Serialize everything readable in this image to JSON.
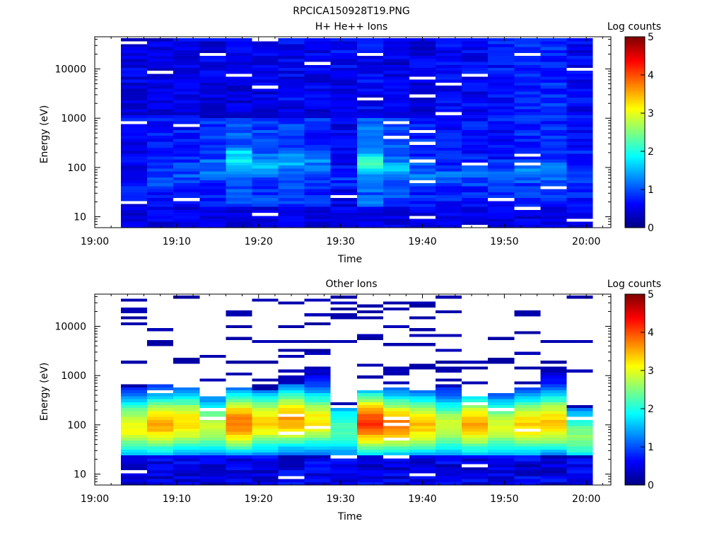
{
  "figure_title": "RPCICA150928T19.PNG",
  "chart_data": [
    {
      "type": "heatmap",
      "title": "H+ He++ Ions",
      "xlabel": "Time",
      "ylabel": "Energy (eV)",
      "x_ticks": [
        "19:00",
        "19:10",
        "19:20",
        "19:30",
        "19:40",
        "19:50",
        "20:00"
      ],
      "xlim": [
        "19:00",
        "20:03"
      ],
      "y_scale": "log",
      "y_ticks": [
        "10",
        "100",
        "1000",
        "10000"
      ],
      "ylim": [
        6,
        45000
      ],
      "colorbar": {
        "label": "Log counts",
        "ticks": [
          "0",
          "1",
          "2",
          "3",
          "4",
          "5"
        ],
        "range": [
          0,
          5
        ],
        "colormap": "jet"
      },
      "scan_starts": [
        "19:03:12",
        "19:06:24",
        "19:09:36",
        "19:12:48",
        "19:16:00",
        "19:19:12",
        "19:22:24",
        "19:25:36",
        "19:28:48",
        "19:32:00",
        "19:35:12",
        "19:38:24",
        "19:41:36",
        "19:44:48",
        "19:48:00",
        "19:51:12",
        "19:54:24",
        "19:57:36"
      ],
      "energy_range_eV": [
        6,
        42000
      ],
      "description_of_values": "Log counts per energy bin per scan",
      "scans": [
        {
          "start": "19:03:12",
          "level_below_100eV": 0.6,
          "level_above_1keV": 0.5,
          "peak_eV": 40,
          "peak_log_counts": 0.8
        },
        {
          "start": "19:06:24",
          "level_below_100eV": 0.7,
          "level_above_1keV": 0.5,
          "peak_eV": 60,
          "peak_log_counts": 1.0
        },
        {
          "start": "19:09:36",
          "level_below_100eV": 0.7,
          "level_above_1keV": 0.5,
          "peak_eV": 80,
          "peak_log_counts": 1.0
        },
        {
          "start": "19:12:48",
          "level_below_100eV": 0.8,
          "level_above_1keV": 0.5,
          "peak_eV": 100,
          "peak_log_counts": 1.2
        },
        {
          "start": "19:16:00",
          "level_below_100eV": 1.0,
          "level_above_1keV": 0.5,
          "peak_eV": 150,
          "peak_log_counts": 1.9
        },
        {
          "start": "19:19:12",
          "level_below_100eV": 0.9,
          "level_above_1keV": 0.5,
          "peak_eV": 110,
          "peak_log_counts": 1.5
        },
        {
          "start": "19:22:24",
          "level_below_100eV": 0.9,
          "level_above_1keV": 0.6,
          "peak_eV": 130,
          "peak_log_counts": 1.5
        },
        {
          "start": "19:25:36",
          "level_below_100eV": 0.8,
          "level_above_1keV": 0.5,
          "peak_eV": 120,
          "peak_log_counts": 1.3
        },
        {
          "start": "19:28:48",
          "level_below_100eV": 0.5,
          "level_above_1keV": 0.6,
          "peak_eV": 60,
          "peak_log_counts": 0.8
        },
        {
          "start": "19:32:00",
          "level_below_100eV": 1.1,
          "level_above_1keV": 0.6,
          "peak_eV": 120,
          "peak_log_counts": 2.3
        },
        {
          "start": "19:35:12",
          "level_below_100eV": 1.0,
          "level_above_1keV": 0.5,
          "peak_eV": 90,
          "peak_log_counts": 1.6
        },
        {
          "start": "19:38:24",
          "level_below_100eV": 0.8,
          "level_above_1keV": 0.5,
          "peak_eV": 80,
          "peak_log_counts": 1.2
        },
        {
          "start": "19:41:36",
          "level_below_100eV": 0.7,
          "level_above_1keV": 0.6,
          "peak_eV": 70,
          "peak_log_counts": 1.1
        },
        {
          "start": "19:44:48",
          "level_below_100eV": 0.7,
          "level_above_1keV": 0.6,
          "peak_eV": 70,
          "peak_log_counts": 1.1
        },
        {
          "start": "19:48:00",
          "level_below_100eV": 0.7,
          "level_above_1keV": 0.7,
          "peak_eV": 70,
          "peak_log_counts": 1.1
        },
        {
          "start": "19:51:12",
          "level_below_100eV": 0.8,
          "level_above_1keV": 0.8,
          "peak_eV": 80,
          "peak_log_counts": 1.2
        },
        {
          "start": "19:54:24",
          "level_below_100eV": 0.8,
          "level_above_1keV": 0.8,
          "peak_eV": 80,
          "peak_log_counts": 1.2
        },
        {
          "start": "19:57:36",
          "level_below_100eV": 0.7,
          "level_above_1keV": 0.6,
          "peak_eV": 70,
          "peak_log_counts": 1.0
        }
      ]
    },
    {
      "type": "heatmap",
      "title": "Other Ions",
      "xlabel": "Time",
      "ylabel": "Energy (eV)",
      "x_ticks": [
        "19:00",
        "19:10",
        "19:20",
        "19:30",
        "19:40",
        "19:50",
        "20:00"
      ],
      "xlim": [
        "19:00",
        "20:03"
      ],
      "y_scale": "log",
      "y_ticks": [
        "10",
        "100",
        "1000",
        "10000"
      ],
      "ylim": [
        6,
        45000
      ],
      "colorbar": {
        "label": "Log counts",
        "ticks": [
          "0",
          "1",
          "2",
          "3",
          "4",
          "5"
        ],
        "range": [
          0,
          5
        ],
        "colormap": "jet"
      },
      "scan_starts": [
        "19:03:12",
        "19:06:24",
        "19:09:36",
        "19:12:48",
        "19:16:00",
        "19:19:12",
        "19:22:24",
        "19:25:36",
        "19:28:48",
        "19:32:00",
        "19:35:12",
        "19:38:24",
        "19:41:36",
        "19:44:48",
        "19:48:00",
        "19:51:12",
        "19:54:24",
        "19:57:36"
      ],
      "energy_range_eV": [
        6,
        42000
      ],
      "description_of_values": "Log counts per energy bin per scan",
      "scans": [
        {
          "start": "19:03:12",
          "peak_eV": 90,
          "peak_log_counts": 3.1,
          "band_top_eV": 600
        },
        {
          "start": "19:06:24",
          "peak_eV": 100,
          "peak_log_counts": 3.5,
          "band_top_eV": 700
        },
        {
          "start": "19:09:36",
          "peak_eV": 110,
          "peak_log_counts": 3.3,
          "band_top_eV": 700
        },
        {
          "start": "19:12:48",
          "peak_eV": 90,
          "peak_log_counts": 2.8,
          "band_top_eV": 400
        },
        {
          "start": "19:16:00",
          "peak_eV": 110,
          "peak_log_counts": 3.8,
          "band_top_eV": 600
        },
        {
          "start": "19:19:12",
          "peak_eV": 110,
          "peak_log_counts": 3.3,
          "band_top_eV": 500
        },
        {
          "start": "19:22:24",
          "peak_eV": 130,
          "peak_log_counts": 3.6,
          "band_top_eV": 700
        },
        {
          "start": "19:25:36",
          "peak_eV": 120,
          "peak_log_counts": 3.2,
          "band_top_eV": 1400
        },
        {
          "start": "19:28:48",
          "peak_eV": 80,
          "peak_log_counts": 2.3,
          "band_top_eV": 220
        },
        {
          "start": "19:32:00",
          "peak_eV": 110,
          "peak_log_counts": 4.1,
          "band_top_eV": 500
        },
        {
          "start": "19:35:12",
          "peak_eV": 100,
          "peak_log_counts": 3.7,
          "band_top_eV": 600
        },
        {
          "start": "19:38:24",
          "peak_eV": 100,
          "peak_log_counts": 3.4,
          "band_top_eV": 500
        },
        {
          "start": "19:41:36",
          "peak_eV": 90,
          "peak_log_counts": 2.9,
          "band_top_eV": 600
        },
        {
          "start": "19:44:48",
          "peak_eV": 100,
          "peak_log_counts": 3.5,
          "band_top_eV": 400
        },
        {
          "start": "19:48:00",
          "peak_eV": 90,
          "peak_log_counts": 2.9,
          "band_top_eV": 450
        },
        {
          "start": "19:51:12",
          "peak_eV": 100,
          "peak_log_counts": 3.3,
          "band_top_eV": 600
        },
        {
          "start": "19:54:24",
          "peak_eV": 110,
          "peak_log_counts": 3.4,
          "band_top_eV": 1600
        },
        {
          "start": "19:57:36",
          "peak_eV": 60,
          "peak_log_counts": 2.5,
          "band_top_eV": 220
        }
      ]
    }
  ]
}
